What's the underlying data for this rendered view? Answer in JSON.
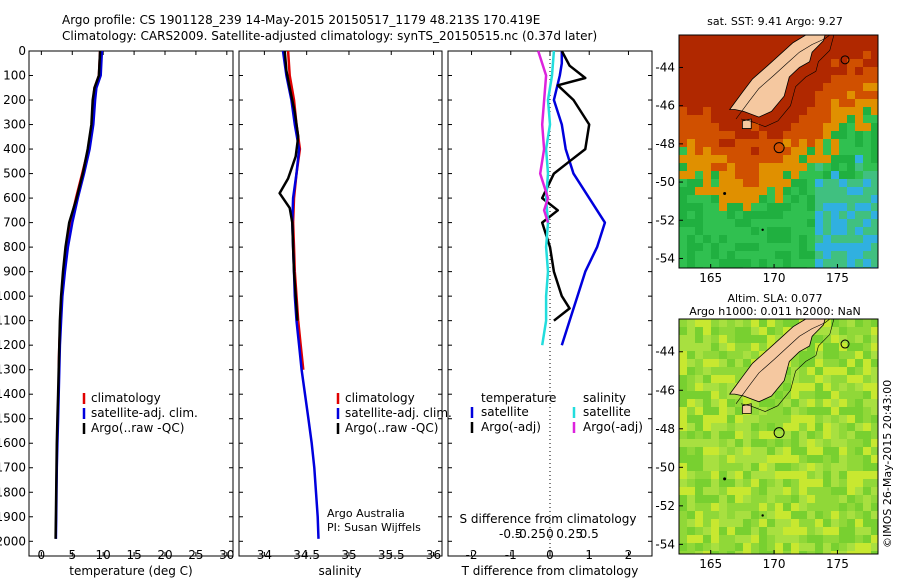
{
  "header": {
    "title_line1": "Argo profile: CS 1901128_239 14-May-2015 20150517_1179 48.213S 170.419E",
    "title_line2": "Climatology: CARS2009. Satellite-adjusted climatology: synTS_20150515.nc (0.37d later)"
  },
  "colors": {
    "climatology": "#e00000",
    "satellite": "#0000dd",
    "argo": "#000000",
    "sat_salinity": "#22dddd",
    "argo_salinity": "#dd22dd",
    "land": "#f5c8a0"
  },
  "chart_data": [
    {
      "type": "line",
      "id": "temperature",
      "xlabel": "temperature (deg C)",
      "xlim": [
        -2,
        31
      ],
      "xticks": [
        0,
        5,
        10,
        15,
        20,
        25,
        30
      ],
      "ylim": [
        0,
        2060
      ],
      "yticks": [
        0,
        100,
        200,
        300,
        400,
        500,
        600,
        700,
        800,
        900,
        1000,
        1100,
        1200,
        1300,
        1400,
        1500,
        1600,
        1700,
        1800,
        1900,
        2000
      ],
      "legend": [
        "climatology",
        "satellite-adj. clim.",
        "Argo(..raw -QC)"
      ],
      "series": [
        {
          "name": "climatology",
          "color": "#e00000",
          "points": [
            [
              9.5,
              0
            ],
            [
              9.4,
              50
            ],
            [
              9.3,
              100
            ],
            [
              8.6,
              150
            ],
            [
              8.4,
              200
            ],
            [
              8.2,
              300
            ],
            [
              7.6,
              400
            ],
            [
              6.6,
              500
            ],
            [
              5.6,
              600
            ],
            [
              4.7,
              700
            ],
            [
              4.1,
              800
            ],
            [
              3.6,
              900
            ],
            [
              3.3,
              1000
            ],
            [
              3.1,
              1100
            ],
            [
              2.9,
              1200
            ],
            [
              2.8,
              1300
            ]
          ]
        },
        {
          "name": "satellite-adj. clim.",
          "color": "#0000dd",
          "points": [
            [
              9.8,
              0
            ],
            [
              9.7,
              50
            ],
            [
              9.6,
              100
            ],
            [
              8.9,
              150
            ],
            [
              8.7,
              200
            ],
            [
              8.4,
              300
            ],
            [
              7.8,
              400
            ],
            [
              6.9,
              500
            ],
            [
              5.9,
              600
            ],
            [
              5.0,
              700
            ],
            [
              4.3,
              800
            ],
            [
              3.8,
              900
            ],
            [
              3.4,
              1000
            ],
            [
              3.2,
              1100
            ],
            [
              3.0,
              1200
            ],
            [
              2.9,
              1300
            ],
            [
              2.8,
              1400
            ],
            [
              2.7,
              1500
            ],
            [
              2.6,
              1600
            ],
            [
              2.5,
              1700
            ],
            [
              2.45,
              1800
            ],
            [
              2.4,
              1900
            ],
            [
              2.35,
              1990
            ]
          ]
        },
        {
          "name": "Argo(..raw -QC)",
          "color": "#000000",
          "points": [
            [
              9.5,
              0
            ],
            [
              9.4,
              50
            ],
            [
              9.3,
              100
            ],
            [
              8.6,
              150
            ],
            [
              8.3,
              200
            ],
            [
              8.1,
              300
            ],
            [
              7.5,
              400
            ],
            [
              6.7,
              500
            ],
            [
              5.7,
              600
            ],
            [
              4.5,
              700
            ],
            [
              3.9,
              800
            ],
            [
              3.5,
              900
            ],
            [
              3.2,
              1000
            ],
            [
              3.0,
              1100
            ],
            [
              2.9,
              1200
            ],
            [
              2.8,
              1300
            ],
            [
              2.7,
              1400
            ],
            [
              2.6,
              1500
            ],
            [
              2.5,
              1600
            ],
            [
              2.45,
              1700
            ],
            [
              2.4,
              1800
            ],
            [
              2.35,
              1900
            ],
            [
              2.3,
              1990
            ]
          ]
        }
      ]
    },
    {
      "type": "line",
      "id": "salinity",
      "xlabel": "salinity",
      "xlim": [
        33.7,
        36.1
      ],
      "xticks": [
        34,
        34.5,
        35,
        35.5,
        36
      ],
      "ylim": [
        0,
        2060
      ],
      "legend": [
        "climatology",
        "satellite-adj. clim.",
        "Argo(..raw -QC)"
      ],
      "annotation": [
        "Argo Australia",
        "PI: Susan Wijffels"
      ],
      "series": [
        {
          "name": "climatology",
          "color": "#e00000",
          "points": [
            [
              34.28,
              0
            ],
            [
              34.3,
              100
            ],
            [
              34.35,
              200
            ],
            [
              34.38,
              300
            ],
            [
              34.42,
              400
            ],
            [
              34.38,
              500
            ],
            [
              34.35,
              600
            ],
            [
              34.34,
              700
            ],
            [
              34.35,
              800
            ],
            [
              34.36,
              900
            ],
            [
              34.38,
              1000
            ],
            [
              34.4,
              1100
            ],
            [
              34.43,
              1200
            ],
            [
              34.46,
              1300
            ]
          ]
        },
        {
          "name": "satellite-adj. clim.",
          "color": "#0000dd",
          "points": [
            [
              34.22,
              0
            ],
            [
              34.24,
              50
            ],
            [
              34.26,
              100
            ],
            [
              34.32,
              200
            ],
            [
              34.36,
              300
            ],
            [
              34.41,
              400
            ],
            [
              34.38,
              500
            ],
            [
              34.34,
              600
            ],
            [
              34.33,
              700
            ],
            [
              34.34,
              800
            ],
            [
              34.35,
              900
            ],
            [
              34.36,
              1000
            ],
            [
              34.38,
              1100
            ],
            [
              34.41,
              1200
            ],
            [
              34.44,
              1300
            ],
            [
              34.48,
              1400
            ],
            [
              34.52,
              1500
            ],
            [
              34.56,
              1600
            ],
            [
              34.59,
              1700
            ],
            [
              34.61,
              1800
            ],
            [
              34.63,
              1900
            ],
            [
              34.64,
              1990
            ]
          ]
        },
        {
          "name": "Argo(..raw -QC)",
          "color": "#000000",
          "points": [
            [
              34.24,
              0
            ],
            [
              34.26,
              80
            ],
            [
              34.3,
              150
            ],
            [
              34.36,
              250
            ],
            [
              34.4,
              350
            ],
            [
              34.37,
              430
            ],
            [
              34.28,
              520
            ],
            [
              34.18,
              580
            ],
            [
              34.3,
              640
            ],
            [
              34.33,
              700
            ],
            [
              34.34,
              800
            ],
            [
              34.35,
              900
            ],
            [
              34.37,
              1000
            ],
            [
              34.39,
              1100
            ]
          ]
        }
      ]
    },
    {
      "type": "line",
      "id": "difference",
      "xlabel": "T difference from climatology",
      "xlabel_top": "S difference from climatology",
      "xlim": [
        -2.6,
        2.6
      ],
      "xticks_T": [
        -2,
        -1,
        0,
        1,
        2
      ],
      "xticks_S": [
        "-0.5",
        "-0.25",
        "0",
        "0.25",
        "0.5"
      ],
      "ylim": [
        0,
        2060
      ],
      "legend_titles": [
        "temperature",
        "salinity"
      ],
      "legend_left": [
        "satellite",
        "Argo(-adj)"
      ],
      "legend_right": [
        "satellite",
        "Argo(-adj)"
      ],
      "series": [
        {
          "name": "satellite",
          "color": "#0000dd",
          "points": [
            [
              0.3,
              0
            ],
            [
              0.3,
              50
            ],
            [
              0.25,
              100
            ],
            [
              0.1,
              200
            ],
            [
              0.3,
              300
            ],
            [
              0.4,
              400
            ],
            [
              0.6,
              500
            ],
            [
              1.0,
              600
            ],
            [
              1.4,
              700
            ],
            [
              1.2,
              800
            ],
            [
              0.9,
              900
            ],
            [
              0.7,
              1000
            ],
            [
              0.5,
              1100
            ],
            [
              0.3,
              1200
            ]
          ]
        },
        {
          "name": "Argo(-adj)",
          "color": "#000000",
          "points": [
            [
              0.3,
              0
            ],
            [
              0.5,
              60
            ],
            [
              0.9,
              110
            ],
            [
              0.2,
              140
            ],
            [
              0.6,
              200
            ],
            [
              1.0,
              300
            ],
            [
              0.9,
              400
            ],
            [
              0.5,
              450
            ],
            [
              0.1,
              500
            ],
            [
              -0.2,
              600
            ],
            [
              0.2,
              650
            ],
            [
              -0.2,
              700
            ],
            [
              0.0,
              800
            ],
            [
              0.1,
              900
            ],
            [
              0.3,
              1000
            ],
            [
              0.5,
              1050
            ],
            [
              0.1,
              1100
            ]
          ]
        },
        {
          "name": "satellite",
          "color": "#22dddd",
          "points": [
            [
              0.1,
              0
            ],
            [
              0.05,
              100
            ],
            [
              -0.05,
              200
            ],
            [
              0.0,
              300
            ],
            [
              -0.1,
              400
            ],
            [
              -0.05,
              500
            ],
            [
              -0.1,
              600
            ],
            [
              -0.05,
              700
            ],
            [
              -0.1,
              800
            ],
            [
              -0.05,
              900
            ],
            [
              -0.1,
              1000
            ],
            [
              -0.1,
              1100
            ],
            [
              -0.2,
              1200
            ]
          ]
        },
        {
          "name": "Argo(-adj)",
          "color": "#dd22dd",
          "points": [
            [
              -0.3,
              0
            ],
            [
              -0.1,
              100
            ],
            [
              -0.2,
              300
            ],
            [
              -0.15,
              400
            ],
            [
              -0.25,
              500
            ],
            [
              -0.05,
              600
            ],
            [
              -0.15,
              650
            ],
            [
              -0.05,
              700
            ]
          ]
        }
      ]
    },
    {
      "type": "heatmap",
      "id": "sst_map",
      "title": "sat. SST: 9.41  Argo: 9.27",
      "xticks": [
        165,
        170,
        175
      ],
      "yticks": [
        -44,
        -46,
        -48,
        -50,
        -52,
        -54
      ],
      "xlim": [
        162.5,
        178.2
      ],
      "ylim": [
        -54.5,
        -42.3
      ],
      "argo_marker": [
        170.4,
        -48.2
      ]
    },
    {
      "type": "heatmap",
      "id": "sla_map",
      "title_line1": "Altim. SLA: 0.077",
      "title_line2": "Argo h1000: 0.011  h2000: NaN",
      "xticks": [
        165,
        170,
        175
      ],
      "yticks": [
        -44,
        -46,
        -48,
        -50,
        -52,
        -54
      ],
      "xlim": [
        162.5,
        178.2
      ],
      "ylim": [
        -54.5,
        -42.3
      ],
      "argo_marker": [
        170.4,
        -48.2
      ]
    }
  ],
  "footer": {
    "imos_stamp": "©IMOS 26-May-2015 20:43:00"
  }
}
